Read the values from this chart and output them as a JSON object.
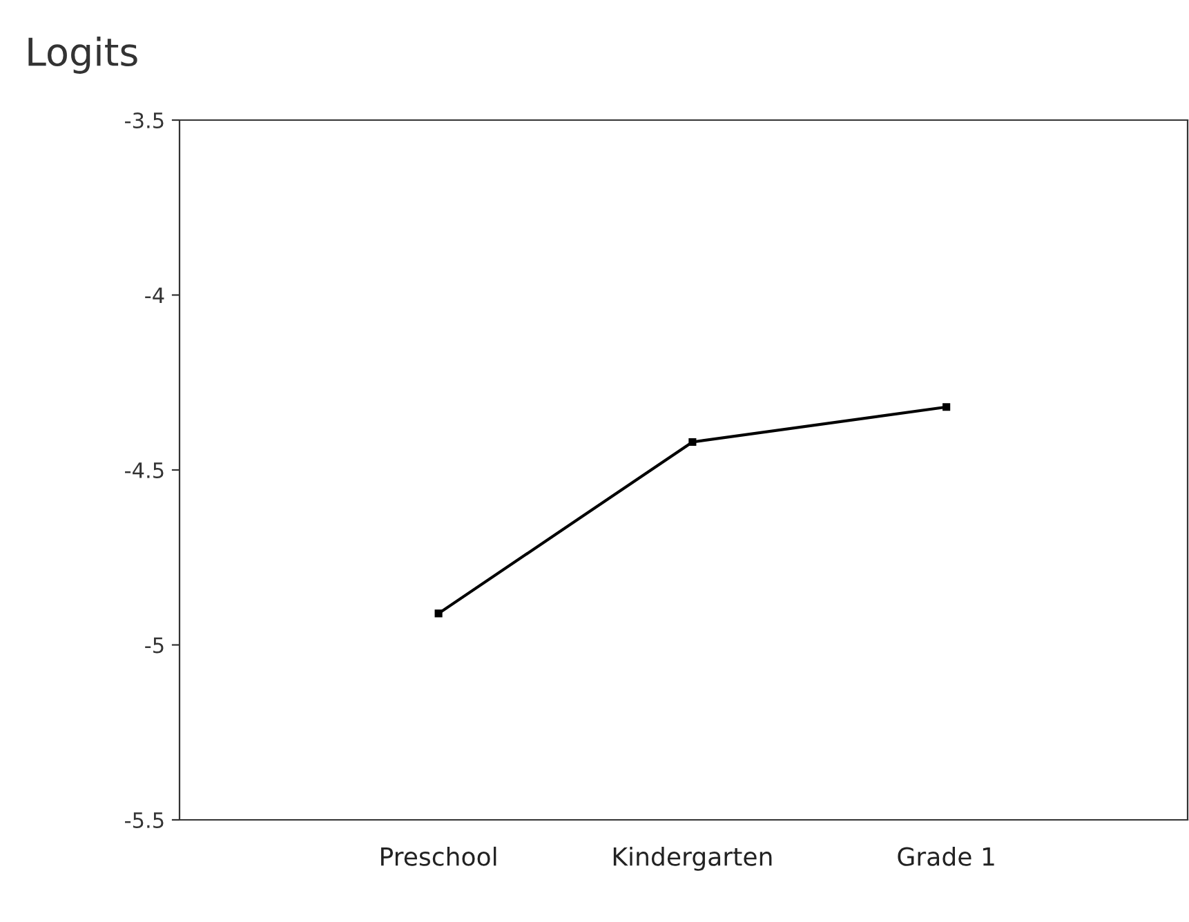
{
  "chart_data": {
    "type": "line",
    "ylabel": "Logits",
    "categories": [
      "Preschool",
      "Kindergarten",
      "Grade 1"
    ],
    "series": [
      {
        "color": "#000000",
        "values": [
          -4.91,
          -4.42,
          -4.32
        ]
      }
    ],
    "ylim": [
      -5.5,
      -3.5
    ],
    "yticks": [
      -5.5,
      -5,
      -4.5,
      -4,
      -3.5
    ],
    "marker": "square",
    "line_style": "solid",
    "grid": false,
    "legend": false
  }
}
